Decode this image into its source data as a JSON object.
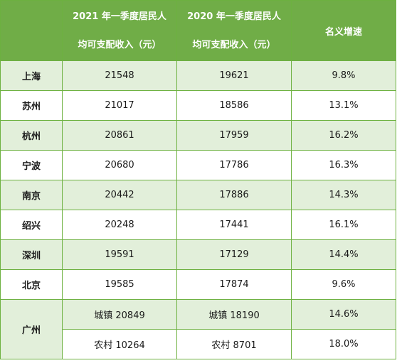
{
  "table": {
    "headers": {
      "col0": "",
      "col1_line1": "2021 年一季度居民人",
      "col1_line2": "均可支配收入（元）",
      "col2_line1": "2020 年一季度居民人",
      "col2_line2": "均可支配收入（元）",
      "col3": "名义增速"
    },
    "rows": [
      {
        "city": "上海",
        "income_2021": "21548",
        "income_2020": "19621",
        "growth": "9.8%"
      },
      {
        "city": "苏州",
        "income_2021": "21017",
        "income_2020": "18586",
        "growth": "13.1%"
      },
      {
        "city": "杭州",
        "income_2021": "20861",
        "income_2020": "17959",
        "growth": "16.2%"
      },
      {
        "city": "宁波",
        "income_2021": "20680",
        "income_2020": "17786",
        "growth": "16.3%"
      },
      {
        "city": "南京",
        "income_2021": "20442",
        "income_2020": "17886",
        "growth": "14.3%"
      },
      {
        "city": "绍兴",
        "income_2021": "20248",
        "income_2020": "17441",
        "growth": "16.1%"
      },
      {
        "city": "深圳",
        "income_2021": "19591",
        "income_2020": "17129",
        "growth": "14.4%"
      },
      {
        "city": "北京",
        "income_2021": "19585",
        "income_2020": "17874",
        "growth": "9.6%"
      }
    ],
    "guangzhou": {
      "city": "广州",
      "urban": {
        "income_2021": "城镇 20849",
        "income_2020": "城镇 18190",
        "growth": "14.6%"
      },
      "rural": {
        "income_2021": "农村 10264",
        "income_2020": "农村 8701",
        "growth": "18.0%"
      }
    }
  },
  "colors": {
    "header_bg": "#70ad47",
    "alt_row_bg": "#e2efda",
    "border": "#6db140"
  }
}
